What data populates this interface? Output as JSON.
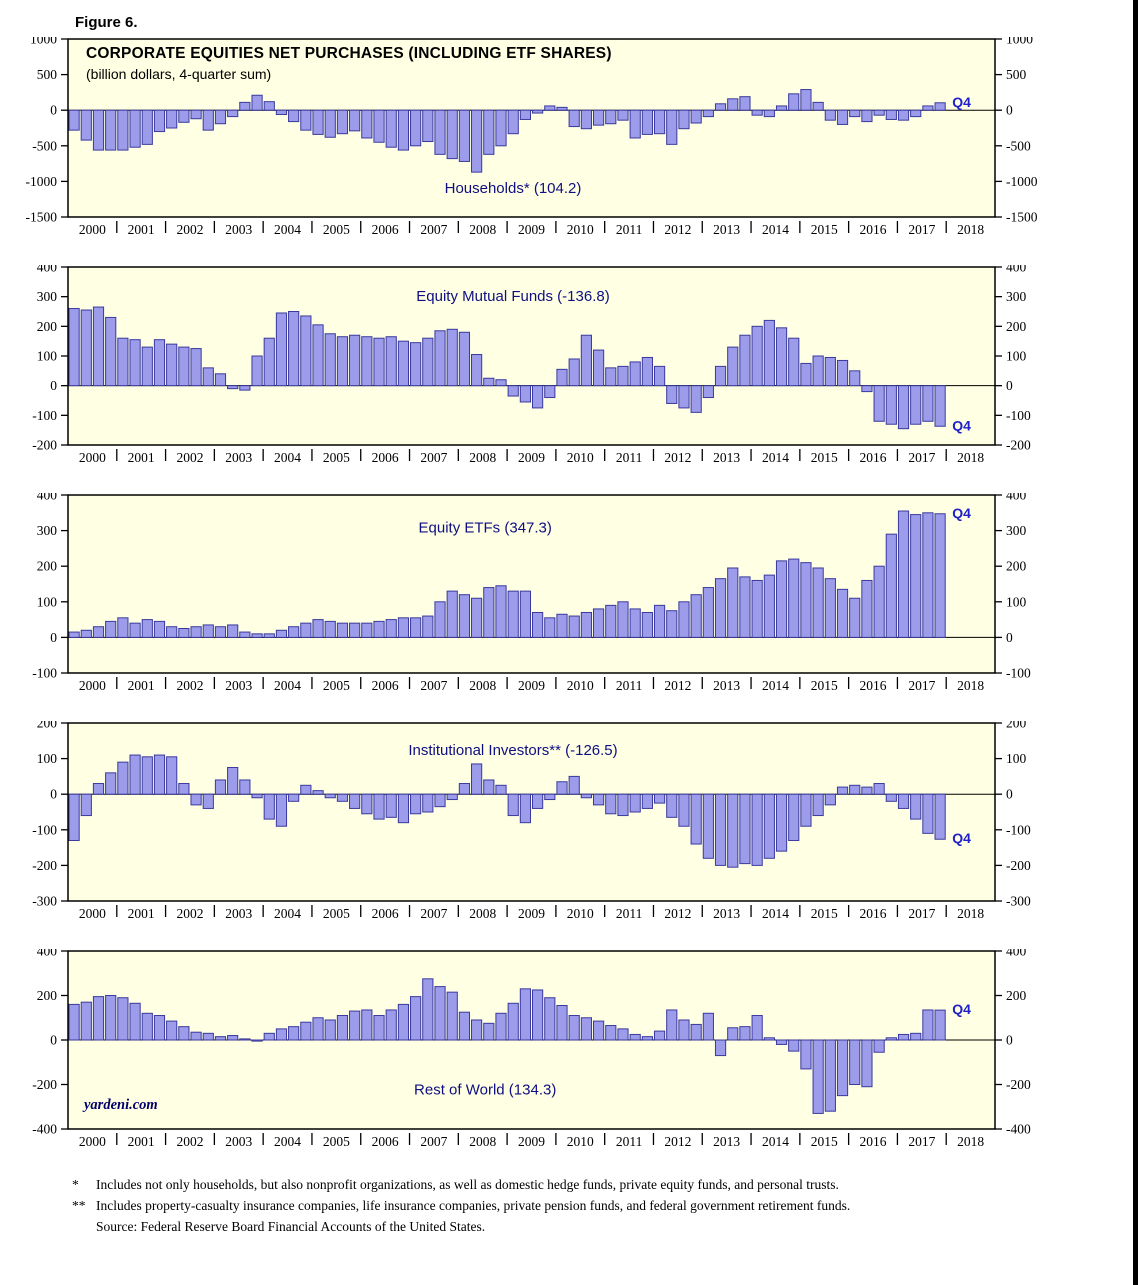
{
  "figure_label": "Figure 6.",
  "title": "CORPORATE EQUITIES NET PURCHASES (INCLUDING ETF SHARES)",
  "subtitle": "(billion dollars, 4-quarter sum)",
  "watermark": "yardeni.com",
  "colors": {
    "bar_fill": "#9C9CEA",
    "bar_stroke": "#3A3A9E",
    "panel_bg": "#FFFFE4",
    "axis_black": "#000000",
    "series_label_blue": "#0F0F82",
    "q4_blue": "#1F1FCB"
  },
  "footnotes": [
    {
      "marker": "*",
      "text": "Includes not only households, but also nonprofit organizations, as well as domestic hedge funds, private equity funds, and personal trusts."
    },
    {
      "marker": "**",
      "text": "Includes property-casualty insurance companies, life insurance companies, private pension funds, and federal government retirement funds."
    },
    {
      "marker": "",
      "text": "Source: Federal Reserve Board Financial Accounts of the United States."
    }
  ],
  "chart_data": [
    {
      "type": "bar",
      "title": "Households* (104.2)",
      "frequency": "quarterly",
      "x_start": "2000Q1",
      "x_end": "2017Q4",
      "x_years": [
        2000,
        2001,
        2002,
        2003,
        2004,
        2005,
        2006,
        2007,
        2008,
        2009,
        2010,
        2011,
        2012,
        2013,
        2014,
        2015,
        2016,
        2017,
        2018
      ],
      "ylim": [
        -1500,
        1000
      ],
      "yticks": [
        1000,
        500,
        0,
        -500,
        -1000,
        -1500
      ],
      "label_x": 0.48,
      "label_y": -1160,
      "q4_label": "Q4",
      "values": [
        -280,
        -420,
        -560,
        -560,
        -560,
        -520,
        -480,
        -300,
        -250,
        -170,
        -120,
        -280,
        -190,
        -90,
        110,
        210,
        120,
        -60,
        -160,
        -280,
        -340,
        -380,
        -330,
        -290,
        -390,
        -450,
        -520,
        -560,
        -500,
        -440,
        -620,
        -680,
        -720,
        -870,
        -620,
        -500,
        -330,
        -130,
        -40,
        60,
        40,
        -230,
        -260,
        -210,
        -190,
        -140,
        -390,
        -340,
        -330,
        -480,
        -260,
        -180,
        -90,
        90,
        160,
        190,
        -70,
        -90,
        60,
        230,
        290,
        110,
        -140,
        -200,
        -90,
        -160,
        -70,
        -130,
        -140,
        -90,
        60,
        104.2
      ]
    },
    {
      "type": "bar",
      "title": "Equity Mutual Funds (-136.8)",
      "frequency": "quarterly",
      "x_start": "2000Q1",
      "x_end": "2017Q4",
      "x_years": [
        2000,
        2001,
        2002,
        2003,
        2004,
        2005,
        2006,
        2007,
        2008,
        2009,
        2010,
        2011,
        2012,
        2013,
        2014,
        2015,
        2016,
        2017,
        2018
      ],
      "ylim": [
        -200,
        400
      ],
      "yticks": [
        400,
        300,
        200,
        100,
        0,
        -100,
        -200
      ],
      "label_x": 0.48,
      "label_y": 285,
      "q4_label": "Q4",
      "values": [
        260,
        255,
        265,
        230,
        160,
        155,
        130,
        155,
        140,
        130,
        125,
        60,
        40,
        -10,
        -15,
        100,
        160,
        245,
        250,
        235,
        205,
        175,
        165,
        170,
        165,
        160,
        165,
        150,
        145,
        160,
        185,
        190,
        180,
        105,
        25,
        20,
        -35,
        -55,
        -75,
        -40,
        55,
        90,
        170,
        120,
        60,
        65,
        80,
        95,
        65,
        -60,
        -75,
        -90,
        -40,
        65,
        130,
        170,
        200,
        220,
        195,
        160,
        75,
        100,
        95,
        85,
        50,
        -20,
        -120,
        -130,
        -145,
        -130,
        -120,
        -136.8
      ]
    },
    {
      "type": "bar",
      "title": "Equity ETFs (347.3)",
      "frequency": "quarterly",
      "x_start": "2000Q1",
      "x_end": "2017Q4",
      "x_years": [
        2000,
        2001,
        2002,
        2003,
        2004,
        2005,
        2006,
        2007,
        2008,
        2009,
        2010,
        2011,
        2012,
        2013,
        2014,
        2015,
        2016,
        2017,
        2018
      ],
      "ylim": [
        -100,
        400
      ],
      "yticks": [
        400,
        300,
        200,
        100,
        0,
        -100
      ],
      "label_x": 0.45,
      "label_y": 295,
      "q4_label": "Q4",
      "values": [
        15,
        20,
        30,
        45,
        55,
        40,
        50,
        45,
        30,
        25,
        30,
        35,
        30,
        35,
        15,
        10,
        10,
        20,
        30,
        40,
        50,
        45,
        40,
        40,
        40,
        45,
        50,
        55,
        55,
        60,
        100,
        130,
        120,
        110,
        140,
        145,
        130,
        130,
        70,
        55,
        65,
        60,
        70,
        80,
        90,
        100,
        80,
        70,
        90,
        75,
        100,
        120,
        140,
        165,
        195,
        170,
        160,
        175,
        215,
        220,
        210,
        195,
        165,
        135,
        110,
        160,
        200,
        290,
        355,
        345,
        350,
        347.3
      ]
    },
    {
      "type": "bar",
      "title": "Institutional Investors** (-126.5)",
      "frequency": "quarterly",
      "x_start": "2000Q1",
      "x_end": "2017Q4",
      "x_years": [
        2000,
        2001,
        2002,
        2003,
        2004,
        2005,
        2006,
        2007,
        2008,
        2009,
        2010,
        2011,
        2012,
        2013,
        2014,
        2015,
        2016,
        2017,
        2018
      ],
      "ylim": [
        -300,
        200
      ],
      "yticks": [
        200,
        100,
        0,
        -100,
        -200,
        -300
      ],
      "label_x": 0.48,
      "label_y": 110,
      "q4_label": "Q4",
      "values": [
        -130,
        -60,
        30,
        60,
        90,
        110,
        105,
        110,
        105,
        30,
        -30,
        -40,
        40,
        75,
        40,
        -10,
        -70,
        -90,
        -20,
        25,
        10,
        -10,
        -20,
        -40,
        -55,
        -70,
        -65,
        -80,
        -55,
        -50,
        -35,
        -15,
        30,
        85,
        40,
        25,
        -60,
        -80,
        -40,
        -15,
        35,
        50,
        -10,
        -30,
        -55,
        -60,
        -50,
        -40,
        -25,
        -65,
        -90,
        -140,
        -180,
        -200,
        -205,
        -195,
        -200,
        -180,
        -160,
        -130,
        -90,
        -60,
        -30,
        20,
        25,
        20,
        30,
        -20,
        -40,
        -70,
        -110,
        -126.5
      ]
    },
    {
      "type": "bar",
      "title": "Rest of World (134.3)",
      "frequency": "quarterly",
      "x_start": "2000Q1",
      "x_end": "2017Q4",
      "x_years": [
        2000,
        2001,
        2002,
        2003,
        2004,
        2005,
        2006,
        2007,
        2008,
        2009,
        2010,
        2011,
        2012,
        2013,
        2014,
        2015,
        2016,
        2017,
        2018
      ],
      "ylim": [
        -400,
        400
      ],
      "yticks": [
        400,
        200,
        0,
        -200,
        -400
      ],
      "label_x": 0.45,
      "label_y": -245,
      "q4_label": "Q4",
      "values": [
        160,
        170,
        195,
        200,
        190,
        165,
        120,
        110,
        85,
        60,
        35,
        30,
        15,
        20,
        5,
        -5,
        30,
        50,
        60,
        80,
        100,
        90,
        110,
        130,
        135,
        110,
        135,
        160,
        195,
        275,
        240,
        215,
        125,
        90,
        75,
        120,
        165,
        230,
        225,
        190,
        155,
        110,
        100,
        85,
        65,
        50,
        25,
        15,
        40,
        135,
        90,
        70,
        120,
        -70,
        55,
        60,
        110,
        10,
        -20,
        -50,
        -130,
        -330,
        -320,
        -250,
        -200,
        -210,
        -55,
        10,
        25,
        30,
        135,
        134.3
      ]
    }
  ]
}
